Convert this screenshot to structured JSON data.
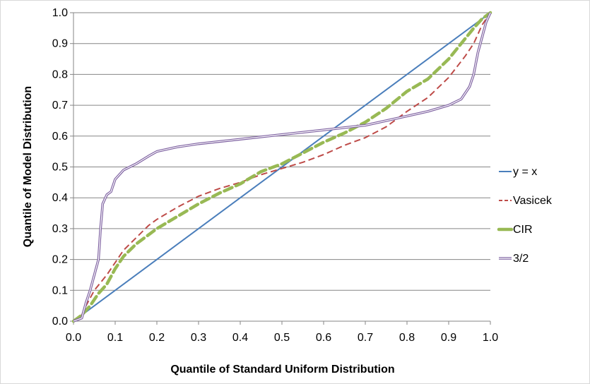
{
  "chart_data": {
    "type": "line",
    "title": "",
    "xlabel": "Quantile of Standard Uniform Distribution",
    "ylabel": "Quantile of Model Distribution",
    "xlim": [
      0,
      1
    ],
    "ylim": [
      0,
      1
    ],
    "xticks": [
      "0.0",
      "0.1",
      "0.2",
      "0.3",
      "0.4",
      "0.5",
      "0.6",
      "0.7",
      "0.8",
      "0.9",
      "1.0"
    ],
    "yticks": [
      "0.0",
      "0.1",
      "0.2",
      "0.3",
      "0.4",
      "0.5",
      "0.6",
      "0.7",
      "0.8",
      "0.9",
      "1.0"
    ],
    "grid": "horizontal",
    "legend_position": "right",
    "series": [
      {
        "name": "y = x",
        "color": "#4a7ebb",
        "style": "solid",
        "points": [
          [
            0,
            0
          ],
          [
            1,
            1
          ]
        ]
      },
      {
        "name": "Vasicek",
        "color": "#be4b48",
        "style": "dashed",
        "points": [
          [
            0.0,
            0.0
          ],
          [
            0.02,
            0.02
          ],
          [
            0.03,
            0.05
          ],
          [
            0.05,
            0.1
          ],
          [
            0.08,
            0.15
          ],
          [
            0.1,
            0.19
          ],
          [
            0.12,
            0.23
          ],
          [
            0.15,
            0.27
          ],
          [
            0.18,
            0.31
          ],
          [
            0.2,
            0.33
          ],
          [
            0.25,
            0.37
          ],
          [
            0.3,
            0.405
          ],
          [
            0.35,
            0.43
          ],
          [
            0.4,
            0.45
          ],
          [
            0.45,
            0.475
          ],
          [
            0.5,
            0.495
          ],
          [
            0.55,
            0.515
          ],
          [
            0.6,
            0.54
          ],
          [
            0.65,
            0.57
          ],
          [
            0.7,
            0.595
          ],
          [
            0.75,
            0.63
          ],
          [
            0.8,
            0.68
          ],
          [
            0.85,
            0.725
          ],
          [
            0.9,
            0.79
          ],
          [
            0.94,
            0.86
          ],
          [
            0.96,
            0.9
          ],
          [
            0.98,
            0.96
          ],
          [
            1.0,
            1.0
          ]
        ]
      },
      {
        "name": "CIR",
        "color": "#98b954",
        "style": "dashed",
        "points": [
          [
            0.0,
            0.0
          ],
          [
            0.02,
            0.02
          ],
          [
            0.04,
            0.05
          ],
          [
            0.06,
            0.09
          ],
          [
            0.08,
            0.12
          ],
          [
            0.1,
            0.17
          ],
          [
            0.12,
            0.21
          ],
          [
            0.15,
            0.25
          ],
          [
            0.2,
            0.3
          ],
          [
            0.25,
            0.34
          ],
          [
            0.3,
            0.38
          ],
          [
            0.35,
            0.415
          ],
          [
            0.4,
            0.445
          ],
          [
            0.45,
            0.485
          ],
          [
            0.5,
            0.51
          ],
          [
            0.55,
            0.545
          ],
          [
            0.6,
            0.58
          ],
          [
            0.65,
            0.61
          ],
          [
            0.7,
            0.645
          ],
          [
            0.75,
            0.69
          ],
          [
            0.8,
            0.745
          ],
          [
            0.85,
            0.785
          ],
          [
            0.9,
            0.85
          ],
          [
            0.93,
            0.9
          ],
          [
            0.96,
            0.95
          ],
          [
            0.98,
            0.98
          ],
          [
            1.0,
            1.0
          ]
        ]
      },
      {
        "name": "3/2",
        "color": "#7d60a0",
        "style": "double",
        "points": [
          [
            0.0,
            0.0
          ],
          [
            0.02,
            0.01
          ],
          [
            0.03,
            0.06
          ],
          [
            0.04,
            0.1
          ],
          [
            0.05,
            0.15
          ],
          [
            0.06,
            0.2
          ],
          [
            0.065,
            0.3
          ],
          [
            0.07,
            0.38
          ],
          [
            0.08,
            0.41
          ],
          [
            0.09,
            0.42
          ],
          [
            0.1,
            0.46
          ],
          [
            0.12,
            0.49
          ],
          [
            0.15,
            0.51
          ],
          [
            0.18,
            0.535
          ],
          [
            0.2,
            0.55
          ],
          [
            0.25,
            0.565
          ],
          [
            0.3,
            0.575
          ],
          [
            0.4,
            0.59
          ],
          [
            0.5,
            0.605
          ],
          [
            0.6,
            0.62
          ],
          [
            0.7,
            0.635
          ],
          [
            0.8,
            0.665
          ],
          [
            0.85,
            0.68
          ],
          [
            0.9,
            0.7
          ],
          [
            0.93,
            0.72
          ],
          [
            0.95,
            0.76
          ],
          [
            0.96,
            0.8
          ],
          [
            0.97,
            0.87
          ],
          [
            0.98,
            0.92
          ],
          [
            0.99,
            0.97
          ],
          [
            1.0,
            1.0
          ]
        ]
      }
    ]
  }
}
